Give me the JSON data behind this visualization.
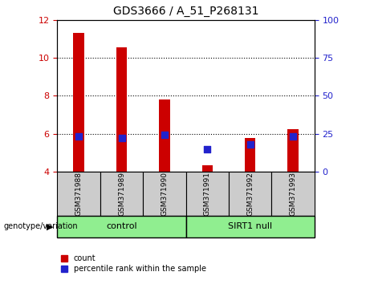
{
  "title": "GDS3666 / A_51_P268131",
  "samples": [
    "GSM371988",
    "GSM371989",
    "GSM371990",
    "GSM371991",
    "GSM371992",
    "GSM371993"
  ],
  "count_values": [
    11.3,
    10.55,
    7.8,
    4.35,
    5.8,
    6.25
  ],
  "percentile_values": [
    5.85,
    5.8,
    5.95,
    5.2,
    5.45,
    5.85
  ],
  "ylim_left": [
    4,
    12
  ],
  "ylim_right": [
    0,
    100
  ],
  "yticks_left": [
    4,
    6,
    8,
    10,
    12
  ],
  "yticks_right": [
    0,
    25,
    50,
    75,
    100
  ],
  "grid_ticks": [
    6,
    8,
    10
  ],
  "control_label": "control",
  "sirt1_label": "SIRT1 null",
  "genotype_label": "genotype/variation",
  "legend_count": "count",
  "legend_percentile": "percentile rank within the sample",
  "bar_color_red": "#cc0000",
  "dot_color_blue": "#2222cc",
  "control_bg": "#90ee90",
  "sirt1_bg": "#90ee90",
  "tick_area_bg": "#cccccc",
  "bar_width": 0.25,
  "dot_size": 30,
  "left_tick_color": "#cc0000",
  "right_tick_color": "#2222cc",
  "n_control": 3,
  "n_sirt1": 3
}
